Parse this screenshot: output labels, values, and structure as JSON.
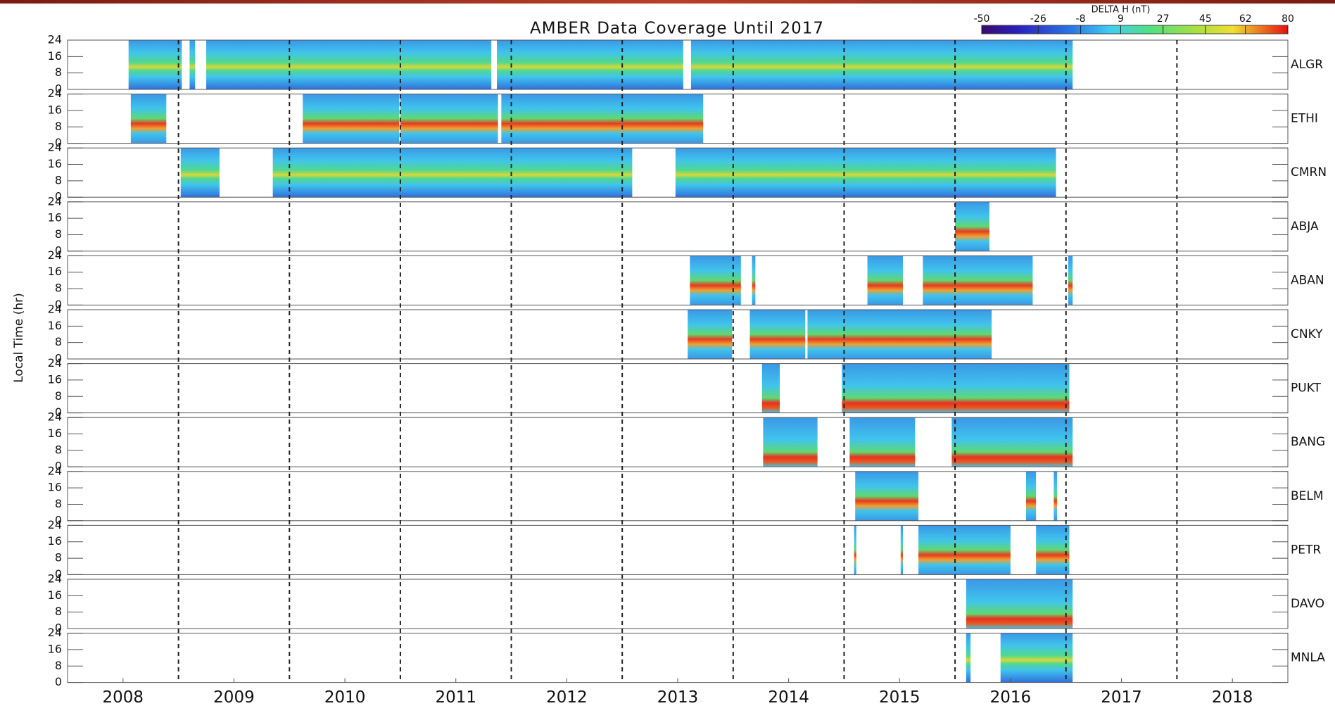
{
  "chart_data": {
    "type": "coverage",
    "title": "AMBER Data Coverage Until 2017",
    "ylabel": "Local Time (hr)",
    "ylim": [
      0,
      24
    ],
    "yticks": [
      0,
      8,
      16,
      24
    ],
    "xlim": [
      2008,
      2019
    ],
    "xticks": [
      {
        "value": 2008.5,
        "label": "2008"
      },
      {
        "value": 2009.5,
        "label": "2009"
      },
      {
        "value": 2010.5,
        "label": "2010"
      },
      {
        "value": 2011.5,
        "label": "2011"
      },
      {
        "value": 2012.5,
        "label": "2012"
      },
      {
        "value": 2013.5,
        "label": "2013"
      },
      {
        "value": 2014.5,
        "label": "2014"
      },
      {
        "value": 2015.5,
        "label": "2015"
      },
      {
        "value": 2016.5,
        "label": "2016"
      },
      {
        "value": 2017.5,
        "label": "2017"
      },
      {
        "value": 2018.5,
        "label": "2018"
      }
    ],
    "xgrid": [
      2009,
      2010,
      2011,
      2012,
      2013,
      2014,
      2015,
      2016,
      2017,
      2018
    ],
    "colorbar": {
      "label": "DELTA H (nT)",
      "lim": [
        -50,
        80
      ],
      "ticks": [
        -50,
        -26,
        -8,
        9,
        27,
        45,
        62,
        80
      ]
    },
    "stations": [
      {
        "name": "ALGR",
        "coverage": [
          [
            2008.55,
            2009.03
          ],
          [
            2009.1,
            2009.15
          ],
          [
            2009.25,
            2011.82
          ],
          [
            2011.87,
            2013.55
          ],
          [
            2013.62,
            2017.06
          ]
        ]
      },
      {
        "name": "ETHI",
        "coverage": [
          [
            2008.57,
            2008.89
          ],
          [
            2010.12,
            2010.99
          ],
          [
            2011.0,
            2011.88
          ],
          [
            2011.91,
            2013.73
          ]
        ]
      },
      {
        "name": "CMRN",
        "coverage": [
          [
            2009.02,
            2009.37
          ],
          [
            2009.85,
            2013.09
          ],
          [
            2013.48,
            2016.91
          ]
        ]
      },
      {
        "name": "ABJA",
        "coverage": [
          [
            2016.0,
            2016.31
          ]
        ]
      },
      {
        "name": "ABAN",
        "coverage": [
          [
            2013.61,
            2014.07
          ],
          [
            2014.17,
            2014.2
          ],
          [
            2015.21,
            2015.53
          ],
          [
            2015.71,
            2016.7
          ],
          [
            2017.02,
            2017.06
          ]
        ]
      },
      {
        "name": "CNKY",
        "coverage": [
          [
            2013.59,
            2013.99
          ],
          [
            2014.15,
            2014.65
          ],
          [
            2014.67,
            2016.33
          ]
        ]
      },
      {
        "name": "PUKT",
        "coverage": [
          [
            2014.26,
            2014.42
          ],
          [
            2014.98,
            2017.03
          ]
        ]
      },
      {
        "name": "BANG",
        "coverage": [
          [
            2014.27,
            2014.76
          ],
          [
            2015.05,
            2015.64
          ],
          [
            2015.97,
            2017.06
          ]
        ]
      },
      {
        "name": "BELM",
        "coverage": [
          [
            2015.1,
            2015.67
          ],
          [
            2016.64,
            2016.73
          ],
          [
            2016.89,
            2016.92
          ]
        ]
      },
      {
        "name": "PETR",
        "coverage": [
          [
            2015.09,
            2015.11
          ],
          [
            2015.51,
            2015.53
          ],
          [
            2015.67,
            2016.5
          ],
          [
            2016.73,
            2017.03
          ]
        ]
      },
      {
        "name": "DAVO",
        "coverage": [
          [
            2016.1,
            2017.06
          ]
        ]
      },
      {
        "name": "MNLA",
        "coverage": [
          [
            2016.1,
            2016.14
          ],
          [
            2016.41,
            2017.06
          ]
        ]
      }
    ]
  }
}
